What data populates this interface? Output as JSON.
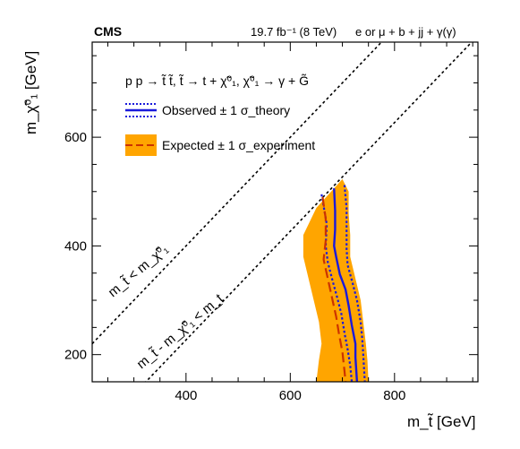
{
  "header": {
    "experiment": "CMS",
    "luminosity": "19.7 fb⁻¹ (8 TeV)",
    "channel": "e or μ + b + jj + γ(γ)"
  },
  "process_label": "p p → t̃ t̃,  t̃ → t + χ̃⁰₁,  χ̃⁰₁ → γ + G̃",
  "chart_data": {
    "type": "line",
    "xlabel": "m_t̃ [GeV]",
    "ylabel": "m_χ̃⁰₁ [GeV]",
    "xlim": [
      220,
      960
    ],
    "ylim": [
      150,
      775
    ],
    "x_ticks": [
      400,
      600,
      800
    ],
    "y_ticks": [
      200,
      400,
      600
    ],
    "x_tick_labels": [
      "400",
      "600",
      "800"
    ],
    "y_tick_labels": [
      "200",
      "400",
      "600"
    ],
    "grid": false,
    "legend_position": "top-left",
    "legend": [
      {
        "label": "Observed ± 1 σ_theory",
        "color": "#1a1adb"
      },
      {
        "label": "Expected ± 1 σ_experiment",
        "color": "#cc3300",
        "band_color": "#ffa500"
      }
    ],
    "diagonal_labels": [
      "m_t̃ < m_χ̃⁰₁",
      "m_t̃ - m_χ̃⁰₁ < m_t"
    ],
    "series": [
      {
        "name": "Observed",
        "style": "solid",
        "color": "#1a1adb",
        "points": [
          [
            684,
            506
          ],
          [
            686,
            465
          ],
          [
            686,
            430
          ],
          [
            684,
            400
          ],
          [
            688,
            380
          ],
          [
            695,
            348
          ],
          [
            706,
            320
          ],
          [
            712,
            290
          ],
          [
            718,
            254
          ],
          [
            725,
            220
          ],
          [
            725,
            195
          ],
          [
            728,
            150
          ]
        ]
      },
      {
        "name": "Observed ± 1 σ_theory (upper)",
        "style": "dotted",
        "color": "#1a1adb",
        "points": [
          [
            704,
            512
          ],
          [
            708,
            470
          ],
          [
            708,
            432
          ],
          [
            708,
            395
          ],
          [
            710,
            365
          ],
          [
            720,
            330
          ],
          [
            728,
            300
          ],
          [
            735,
            260
          ],
          [
            738,
            230
          ],
          [
            740,
            200
          ],
          [
            743,
            150
          ]
        ]
      },
      {
        "name": "Observed ± 1 σ_theory (lower)",
        "style": "dotted",
        "color": "#1a1adb",
        "points": [
          [
            660,
            495
          ],
          [
            670,
            440
          ],
          [
            668,
            400
          ],
          [
            672,
            370
          ],
          [
            680,
            340
          ],
          [
            690,
            305
          ],
          [
            698,
            275
          ],
          [
            704,
            240
          ],
          [
            710,
            210
          ],
          [
            715,
            180
          ],
          [
            718,
            150
          ]
        ]
      },
      {
        "name": "Expected",
        "style": "dashed",
        "color": "#cc3300",
        "points": [
          [
            662,
            490
          ],
          [
            668,
            450
          ],
          [
            668,
            410
          ],
          [
            664,
            375
          ],
          [
            672,
            340
          ],
          [
            680,
            305
          ],
          [
            688,
            270
          ],
          [
            694,
            235
          ],
          [
            700,
            205
          ],
          [
            704,
            170
          ],
          [
            706,
            150
          ]
        ]
      }
    ],
    "band": {
      "name": "Expected ± 1 σ_experiment",
      "color": "#ffa500",
      "upper": [
        [
          700,
          523
        ],
        [
          712,
          500
        ],
        [
          712,
          460
        ],
        [
          715,
          420
        ],
        [
          715,
          380
        ],
        [
          725,
          340
        ],
        [
          735,
          300
        ],
        [
          740,
          260
        ],
        [
          745,
          220
        ],
        [
          748,
          190
        ],
        [
          750,
          150
        ]
      ],
      "lower": [
        [
          650,
          470
        ],
        [
          625,
          420
        ],
        [
          625,
          380
        ],
        [
          635,
          340
        ],
        [
          645,
          300
        ],
        [
          655,
          260
        ],
        [
          660,
          220
        ],
        [
          655,
          190
        ],
        [
          650,
          150
        ]
      ]
    },
    "diagonals": [
      {
        "name": "m_t̃ = m_χ̃⁰₁",
        "intercept": 0
      },
      {
        "name": "m_t̃ - m_χ̃⁰₁ = m_t",
        "intercept": 173
      }
    ]
  }
}
